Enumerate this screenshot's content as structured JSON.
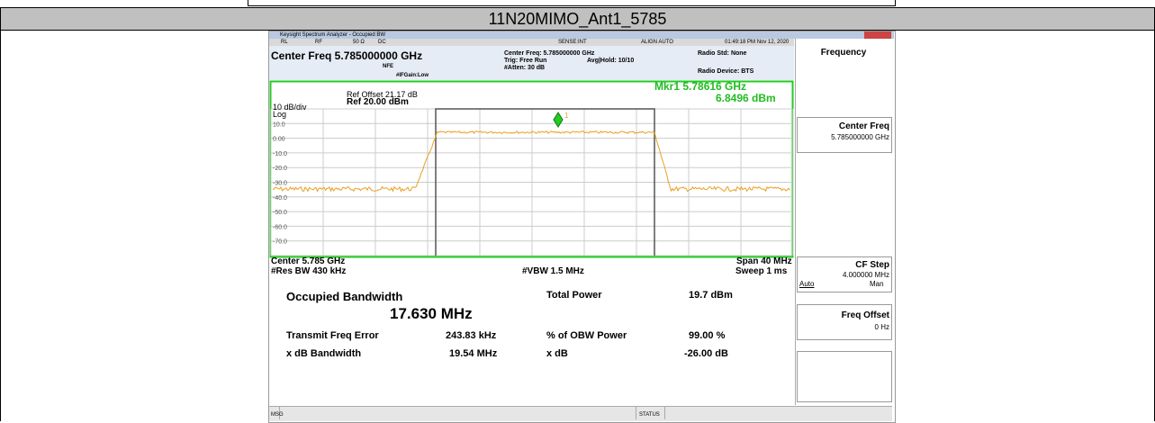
{
  "document": {
    "header_title": "11N20MIMO_Ant1_5785"
  },
  "analyzer": {
    "window_title": "Keysight Spectrum Analyzer - Occupied BW",
    "status_bar": [
      "RL",
      "RF",
      "50 Ω",
      "DC",
      "SENSE:INT",
      "ALIGN AUTO",
      "01:49:18 PM Nov 12, 2020"
    ],
    "center_freq": "Center Freq 5.785000000 GHz",
    "nfe": "NFE",
    "ifgain": "#IFGain:Low",
    "settings": [
      "Center Freq: 5.785000000 GHz",
      "Trig: Free Run",
      "#Atten: 30 dB"
    ],
    "avg_hold": "Avg|Hold: 10/10",
    "radio_std": "Radio Std: None",
    "radio_device": "Radio Device: BTS",
    "ref_offset": "Ref Offset 21.17 dB",
    "ref_level": "Ref 20.00 dBm",
    "scale": "10 dB/div",
    "log": "Log",
    "marker_freq": "Mkr1  5.78616 GHz",
    "marker_level": "6.8496 dBm",
    "marker_id": "1",
    "y_labels": [
      "10.0",
      "0.00",
      "-10.0",
      "-20.0",
      "-30.0",
      "-40.0",
      "-50.0",
      "-60.0",
      "-70.0"
    ],
    "center": "Center  5.785 GHz",
    "res_bw": "#Res BW  430 kHz",
    "vbw": "#VBW  1.5 MHz",
    "span": "Span 40 MHz",
    "sweep": "Sweep  1 ms",
    "results": {
      "obw_label": "Occupied Bandwidth",
      "obw_value": "17.630 MHz",
      "total_power_label": "Total Power",
      "total_power_value": "19.7 dBm",
      "freq_error_label": "Transmit Freq Error",
      "freq_error_value": "243.83 kHz",
      "obw_power_label": "% of OBW Power",
      "obw_power_value": "99.00 %",
      "xdb_bw_label": "x dB Bandwidth",
      "xdb_bw_value": "19.54 MHz",
      "xdb_label": "x dB",
      "xdb_value": "-26.00 dB"
    },
    "softkeys": {
      "menu": "Frequency",
      "center_freq": "Center Freq",
      "center_freq_value": "5.785000000 GHz",
      "cf_step": "CF Step",
      "cf_step_value": "4.000000 MHz",
      "auto": "Auto",
      "man": "Man",
      "freq_offset": "Freq Offset",
      "freq_offset_value": "0 Hz"
    },
    "msg": "MSG",
    "status": "STATUS"
  }
}
